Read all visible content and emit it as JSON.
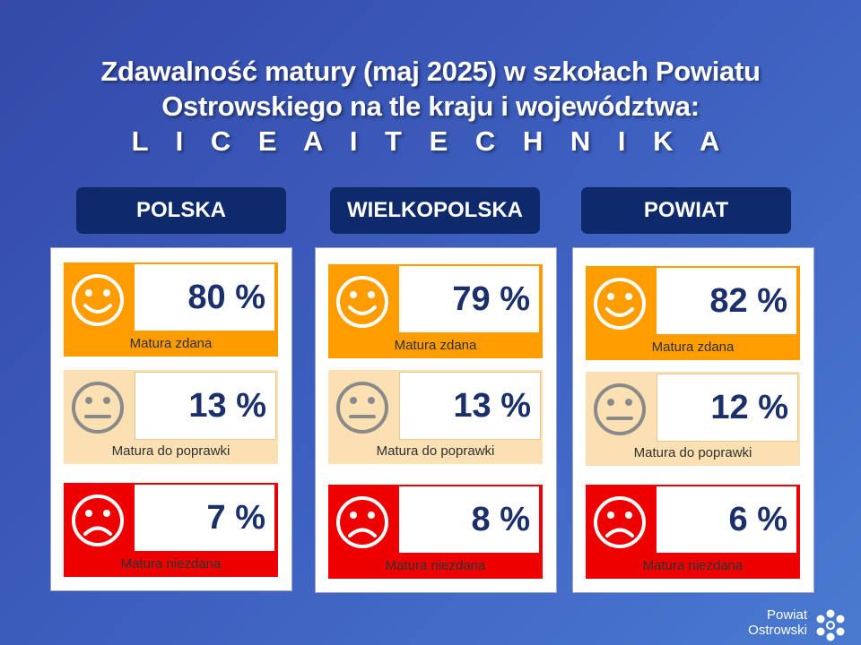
{
  "title": {
    "line1": "Zdawalność matury (maj 2025) w szkołach Powiatu",
    "line2": "Ostrowskiego na tle kraju i województwa:",
    "line3": "L I C E A  I  T E C H N I K A"
  },
  "columns": [
    {
      "header": "POLSKA",
      "pass": {
        "value": "80 %",
        "label": "Matura zdana"
      },
      "retry": {
        "value": "13 %",
        "label": "Matura do poprawki"
      },
      "fail": {
        "value": "7 %",
        "label": "Matura niezdana"
      }
    },
    {
      "header": "WIELKOPOLSKA",
      "pass": {
        "value": "79 %",
        "label": "Matura zdana"
      },
      "retry": {
        "value": "13 %",
        "label": "Matura do poprawki"
      },
      "fail": {
        "value": "8 %",
        "label": "Matura niezdana"
      }
    },
    {
      "header": "POWIAT",
      "pass": {
        "value": "82 %",
        "label": "Matura zdana"
      },
      "retry": {
        "value": "12 %",
        "label": "Matura do poprawki"
      },
      "fail": {
        "value": "6 %",
        "label": "Matura niezdana"
      }
    }
  ],
  "logo": {
    "line1": "Powiat",
    "line2": "Ostrowski"
  },
  "icons": {
    "pass": "smiley-face-icon",
    "retry": "neutral-face-icon",
    "fail": "sad-face-icon"
  },
  "colors": {
    "pass": "#ff9c00",
    "retry": "#fbe0b3",
    "fail": "#ee0000",
    "header": "#0f2a6b",
    "value_text": "#1b2f6b"
  }
}
